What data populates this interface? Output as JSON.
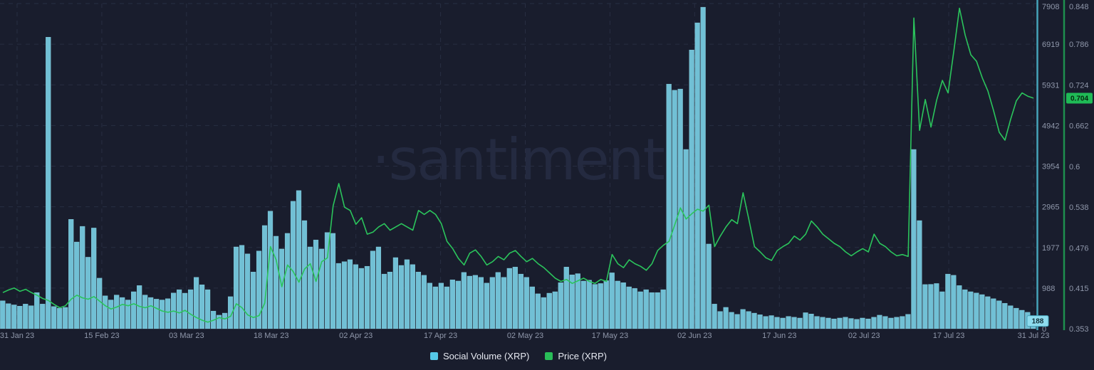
{
  "watermark": "·santiment",
  "legend": {
    "social_volume": "Social Volume (XRP)",
    "price": "Price (XRP)"
  },
  "current_values": {
    "social_volume": "188",
    "price": "0.704"
  },
  "colors": {
    "background": "#191d2d",
    "grid": "#282e42",
    "axis_baseline": "#2a3040",
    "bar": "#71c0d5",
    "bar_edge": "#8fd3e3",
    "line": "#2bc45c",
    "volume_axis_line": "#46a3ba",
    "price_axis_line": "#1e8f4e",
    "tick_text": "#8f97aa",
    "legend_text": "#e6e9f1",
    "legend_swatch_volume": "#55c8e8",
    "legend_swatch_price": "#29bd58",
    "watermark_text": "#242a40",
    "volume_badge_bg": "#8edcee",
    "volume_badge_text": "#123038",
    "price_badge_bg": "#1fba56",
    "price_badge_text": "#06240f"
  },
  "chart_data": {
    "type": "combo",
    "title": "",
    "grid": true,
    "legend_position": "bottom",
    "x_axis": {
      "interval": "1 day",
      "start": "31 Jan 23",
      "end": "31 Jul 23",
      "tick_labels": [
        "31 Jan 23",
        "15 Feb 23",
        "03 Mar 23",
        "18 Mar 23",
        "02 Apr 23",
        "17 Apr 23",
        "02 May 23",
        "17 May 23",
        "02 Jun 23",
        "17 Jun 23",
        "02 Jul 23",
        "17 Jul 23",
        "31 Jul 23"
      ]
    },
    "left_axis": {
      "name": "Social Volume (XRP)",
      "range": [
        0,
        7908
      ],
      "ticks": [
        7908,
        6919,
        5931,
        4942,
        3954,
        2965,
        1977,
        988,
        0
      ]
    },
    "right_axis": {
      "name": "Price (XRP)",
      "range": [
        0.353,
        0.848
      ],
      "ticks": [
        0.848,
        0.786,
        0.724,
        0.662,
        0.6,
        0.538,
        0.476,
        0.415,
        0.353
      ]
    },
    "current": {
      "social_volume": 188,
      "price": 0.704
    },
    "series": [
      {
        "name": "Social Volume (XRP)",
        "type": "bar",
        "axis": "left",
        "color": "#71c0d5",
        "values": [
          680,
          610,
          580,
          550,
          600,
          560,
          880,
          600,
          7090,
          540,
          500,
          520,
          2660,
          2110,
          2490,
          1740,
          2450,
          1230,
          800,
          700,
          820,
          760,
          700,
          900,
          1050,
          820,
          760,
          720,
          700,
          730,
          870,
          950,
          865,
          950,
          1250,
          1070,
          950,
          430,
          330,
          380,
          780,
          1990,
          2030,
          1820,
          1380,
          1890,
          2510,
          2860,
          2250,
          1940,
          2320,
          3100,
          3360,
          2630,
          1990,
          2160,
          1940,
          2340,
          2320,
          1590,
          1630,
          1680,
          1560,
          1470,
          1520,
          1890,
          1990,
          1330,
          1380,
          1730,
          1540,
          1680,
          1560,
          1380,
          1300,
          1110,
          1020,
          1110,
          1020,
          1190,
          1160,
          1370,
          1280,
          1300,
          1250,
          1110,
          1250,
          1370,
          1250,
          1470,
          1500,
          1330,
          1250,
          1020,
          850,
          760,
          865,
          900,
          1120,
          1500,
          1310,
          1340,
          1160,
          1180,
          1080,
          1100,
          1170,
          1360,
          1160,
          1120,
          1020,
          980,
          900,
          950,
          880,
          880,
          950,
          5950,
          5800,
          5830,
          4360,
          6780,
          7440,
          7820,
          2060,
          600,
          420,
          520,
          400,
          350,
          470,
          420,
          380,
          340,
          300,
          320,
          280,
          260,
          300,
          280,
          260,
          390,
          360,
          300,
          280,
          260,
          240,
          260,
          280,
          250,
          230,
          260,
          240,
          280,
          330,
          300,
          260,
          280,
          300,
          350,
          4360,
          2630,
          1075,
          1080,
          1100,
          900,
          1330,
          1300,
          1050,
          950,
          900,
          870,
          830,
          780,
          730,
          680,
          620,
          560,
          500,
          450,
          400,
          188
        ]
      },
      {
        "name": "Price (XRP)",
        "type": "line",
        "axis": "right",
        "color": "#2bc45c",
        "values": [
          0.408,
          0.412,
          0.415,
          0.41,
          0.413,
          0.408,
          0.404,
          0.399,
          0.396,
          0.39,
          0.385,
          0.388,
          0.398,
          0.404,
          0.4,
          0.398,
          0.402,
          0.395,
          0.388,
          0.383,
          0.386,
          0.39,
          0.388,
          0.391,
          0.387,
          0.385,
          0.388,
          0.384,
          0.38,
          0.378,
          0.38,
          0.377,
          0.381,
          0.375,
          0.37,
          0.366,
          0.363,
          0.366,
          0.37,
          0.368,
          0.372,
          0.391,
          0.385,
          0.374,
          0.37,
          0.373,
          0.392,
          0.478,
          0.458,
          0.417,
          0.45,
          0.44,
          0.424,
          0.444,
          0.452,
          0.425,
          0.455,
          0.461,
          0.54,
          0.574,
          0.538,
          0.533,
          0.512,
          0.522,
          0.497,
          0.5,
          0.508,
          0.513,
          0.503,
          0.508,
          0.513,
          0.508,
          0.503,
          0.533,
          0.527,
          0.533,
          0.527,
          0.513,
          0.486,
          0.475,
          0.46,
          0.45,
          0.468,
          0.473,
          0.463,
          0.45,
          0.455,
          0.463,
          0.458,
          0.468,
          0.472,
          0.463,
          0.455,
          0.46,
          0.452,
          0.446,
          0.438,
          0.43,
          0.425,
          0.428,
          0.422,
          0.426,
          0.43,
          0.425,
          0.422,
          0.428,
          0.425,
          0.466,
          0.452,
          0.446,
          0.458,
          0.452,
          0.448,
          0.442,
          0.452,
          0.472,
          0.48,
          0.486,
          0.511,
          0.537,
          0.52,
          0.528,
          0.535,
          0.532,
          0.541,
          0.478,
          0.494,
          0.508,
          0.519,
          0.513,
          0.56,
          0.52,
          0.478,
          0.47,
          0.461,
          0.457,
          0.472,
          0.478,
          0.483,
          0.494,
          0.488,
          0.497,
          0.517,
          0.508,
          0.497,
          0.49,
          0.483,
          0.478,
          0.47,
          0.464,
          0.47,
          0.475,
          0.47,
          0.497,
          0.483,
          0.478,
          0.47,
          0.464,
          0.466,
          0.463,
          0.826,
          0.655,
          0.702,
          0.66,
          0.701,
          0.731,
          0.712,
          0.775,
          0.841,
          0.8,
          0.77,
          0.76,
          0.735,
          0.715,
          0.685,
          0.652,
          0.64,
          0.672,
          0.7,
          0.712,
          0.707,
          0.704
        ]
      }
    ]
  }
}
